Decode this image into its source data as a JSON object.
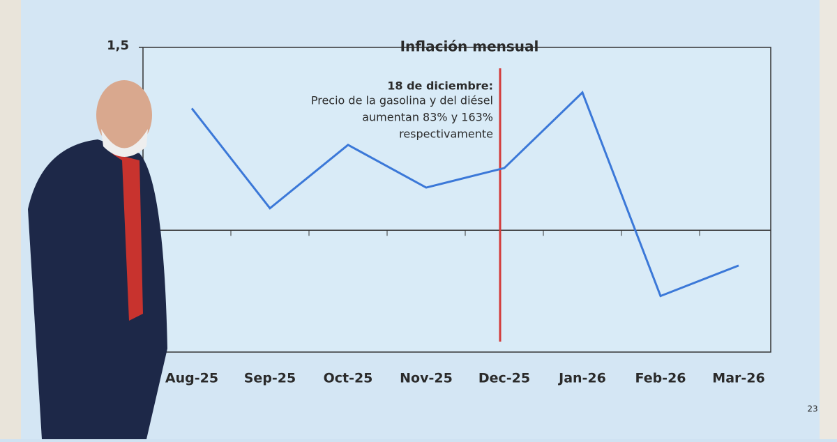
{
  "chart_data": {
    "type": "line",
    "title": "Inflación mensual",
    "categories": [
      "Aug-25",
      "Sep-25",
      "Oct-25",
      "Nov-25",
      "Dec-25",
      "Jan-26",
      "Feb-26",
      "Mar-26"
    ],
    "series": [
      {
        "name": "Inflación mensual",
        "color": "#3b78d8",
        "values": [
          1.0,
          0.18,
          0.7,
          0.35,
          0.51,
          1.13,
          -0.54,
          -0.29
        ]
      }
    ],
    "ylim": [
      -1,
      1.5
    ],
    "yticks": [
      {
        "value": 1.5,
        "label": "1,5"
      }
    ],
    "annotation": {
      "title": "18 de diciembre:",
      "lines": [
        "Precio de la gasolina y del diésel",
        "aumentan 83% y 163%",
        "respectivamente"
      ],
      "color": "#d33a3a"
    },
    "page_number": "23"
  }
}
